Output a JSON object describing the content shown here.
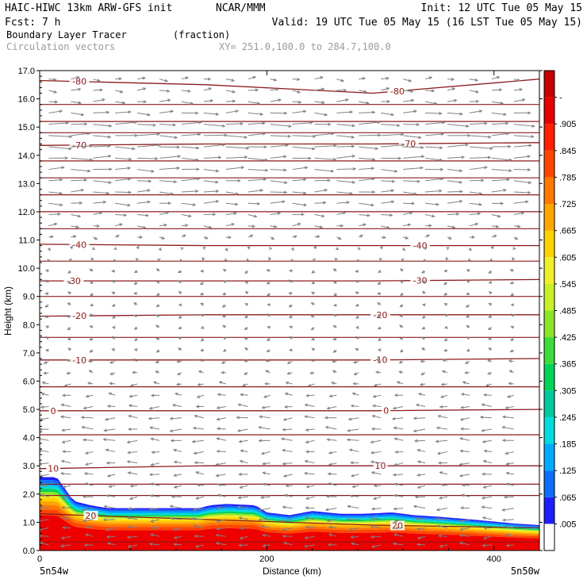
{
  "header": {
    "line1_left": "HAIC-HIWC 13km ARW-GFS init",
    "line1_mid": "NCAR/MMM",
    "line1_right": "Init: 12 UTC Tue 05 May 15",
    "line2_left": "Fcst:    7 h",
    "line2_right": "Valid: 19 UTC Tue 05 May 15 (16 LST Tue 05 May 15)",
    "field_name": "Boundary Layer Tracer",
    "field_units": "(fraction)",
    "vector_name": "Circulation vectors",
    "xsec_endpoints": "XY= 251.0,100.0 to 284.7,100.0"
  },
  "colors": {
    "contour": "#8b1a1a",
    "vector": "#808080",
    "text": "#000000"
  },
  "chart_data": {
    "type": "heatmap",
    "xlabel": "Distance (km)",
    "ylabel": "Height (km)",
    "xlim": [
      0,
      440
    ],
    "ylim": [
      0,
      17
    ],
    "x_ticks": [
      0,
      200,
      400
    ],
    "x_tick_labels": [
      "0",
      "200",
      "400"
    ],
    "y_ticks": [
      0,
      1,
      2,
      3,
      4,
      5,
      6,
      7,
      8,
      9,
      10,
      11,
      12,
      13,
      14,
      15,
      16,
      17
    ],
    "y_tick_labels": [
      "0.0",
      "1.0",
      "2.0",
      "3.0",
      "4.0",
      "5.0",
      "6.0",
      "7.0",
      "8.0",
      "9.0",
      "10.0",
      "11.0",
      "12.0",
      "13.0",
      "14.0",
      "15.0",
      "16.0",
      "17.0"
    ],
    "endpoint_left": "5n54w",
    "endpoint_right": "5n50w",
    "colorbar": {
      "labels": [
        ".005",
        ".065",
        ".125",
        ".185",
        ".245",
        ".305",
        ".365",
        ".425",
        ".485",
        ".545",
        ".605",
        ".665",
        ".725",
        ".785",
        ".845",
        ".905",
        "-"
      ],
      "colors": [
        "#ffffff",
        "#1e1eff",
        "#0a6efa",
        "#00aaff",
        "#00dcdc",
        "#00c8a0",
        "#00d25a",
        "#3cdc3c",
        "#8ce628",
        "#c8f028",
        "#f0f028",
        "#ffd200",
        "#ffa500",
        "#ff7800",
        "#ff4600",
        "#ff1e00",
        "#e60000",
        "#c80000"
      ]
    },
    "tracer_top_km": [
      [
        0,
        2.6
      ],
      [
        15,
        2.6
      ],
      [
        22,
        2.2
      ],
      [
        30,
        1.75
      ],
      [
        45,
        1.6
      ],
      [
        60,
        1.5
      ],
      [
        100,
        1.5
      ],
      [
        140,
        1.5
      ],
      [
        150,
        1.6
      ],
      [
        165,
        1.65
      ],
      [
        190,
        1.6
      ],
      [
        200,
        1.35
      ],
      [
        220,
        1.25
      ],
      [
        240,
        1.4
      ],
      [
        265,
        1.3
      ],
      [
        285,
        1.3
      ],
      [
        310,
        1.35
      ],
      [
        330,
        1.25
      ],
      [
        350,
        1.2
      ],
      [
        380,
        1.1
      ],
      [
        420,
        0.95
      ],
      [
        440,
        0.9
      ]
    ],
    "temperature_contours": [
      {
        "label": "20",
        "y_km": [
          1.3,
          1.1,
          0.9,
          0.8
        ],
        "label_x": [
          45,
          315
        ]
      },
      {
        "label": "10",
        "y_km": [
          2.9,
          3.0,
          3.0,
          3.0
        ],
        "label_x": [
          12,
          300
        ]
      },
      {
        "label": "0",
        "y_km": [
          4.95,
          4.95,
          4.95,
          5.0
        ],
        "label_x": [
          12,
          305
        ]
      },
      {
        "label": "-10",
        "y_km": [
          6.75,
          6.75,
          6.75,
          6.8
        ],
        "label_x": [
          35,
          300
        ]
      },
      {
        "label": "-20",
        "y_km": [
          8.3,
          8.35,
          8.35,
          8.35
        ],
        "label_x": [
          35,
          300
        ]
      },
      {
        "label": "-30",
        "y_km": [
          9.55,
          9.55,
          9.55,
          9.6
        ],
        "label_x": [
          30,
          335
        ]
      },
      {
        "label": "-40",
        "y_km": [
          10.85,
          10.8,
          10.8,
          10.8
        ],
        "label_x": [
          35,
          335
        ]
      },
      {
        "label": "-70",
        "y_km": [
          14.35,
          14.4,
          14.4,
          14.45
        ],
        "label_x": [
          35,
          325
        ]
      },
      {
        "label": "-80",
        "y_km": [
          16.65,
          16.5,
          16.2,
          16.7
        ],
        "label_x": [
          35,
          315
        ]
      }
    ],
    "extra_contours_km": [
      0.3,
      1.95,
      2.35,
      4.1,
      5.8,
      7.55,
      9.0,
      10.25,
      11.4,
      12.0,
      12.6,
      13.2,
      13.8,
      14.8,
      15.2,
      15.8
    ],
    "wind_rows_km": [
      0.2,
      0.5,
      0.8,
      1.1,
      1.5,
      1.9,
      2.3,
      2.7,
      3.1,
      3.5,
      3.9,
      4.3,
      4.7,
      5.1,
      5.5,
      5.9,
      6.3,
      6.7,
      7.1,
      7.5,
      7.9,
      8.3,
      8.7,
      9.1,
      9.5,
      9.9,
      10.3,
      10.7,
      11.1,
      11.5,
      11.9,
      12.3,
      12.7,
      13.1,
      13.5,
      13.9,
      14.3,
      14.7,
      15.1,
      15.5,
      15.9,
      16.3,
      16.7
    ],
    "wind_u_profile_by_row": [
      -0.6,
      -0.6,
      -0.6,
      -0.7,
      -0.7,
      -0.6,
      -0.5,
      -0.6,
      -0.6,
      -0.6,
      -0.7,
      -0.7,
      -0.7,
      -0.6,
      -0.5,
      -0.4,
      -0.3,
      -0.3,
      -0.2,
      -0.2,
      -0.2,
      -0.2,
      -0.2,
      -0.2,
      -0.2,
      -0.2,
      -0.1,
      0.1,
      0.3,
      0.5,
      0.7,
      0.9,
      1.0,
      1.1,
      1.2,
      1.3,
      1.4,
      1.4,
      1.3,
      1.0,
      0.7,
      0.6,
      0.5
    ]
  }
}
